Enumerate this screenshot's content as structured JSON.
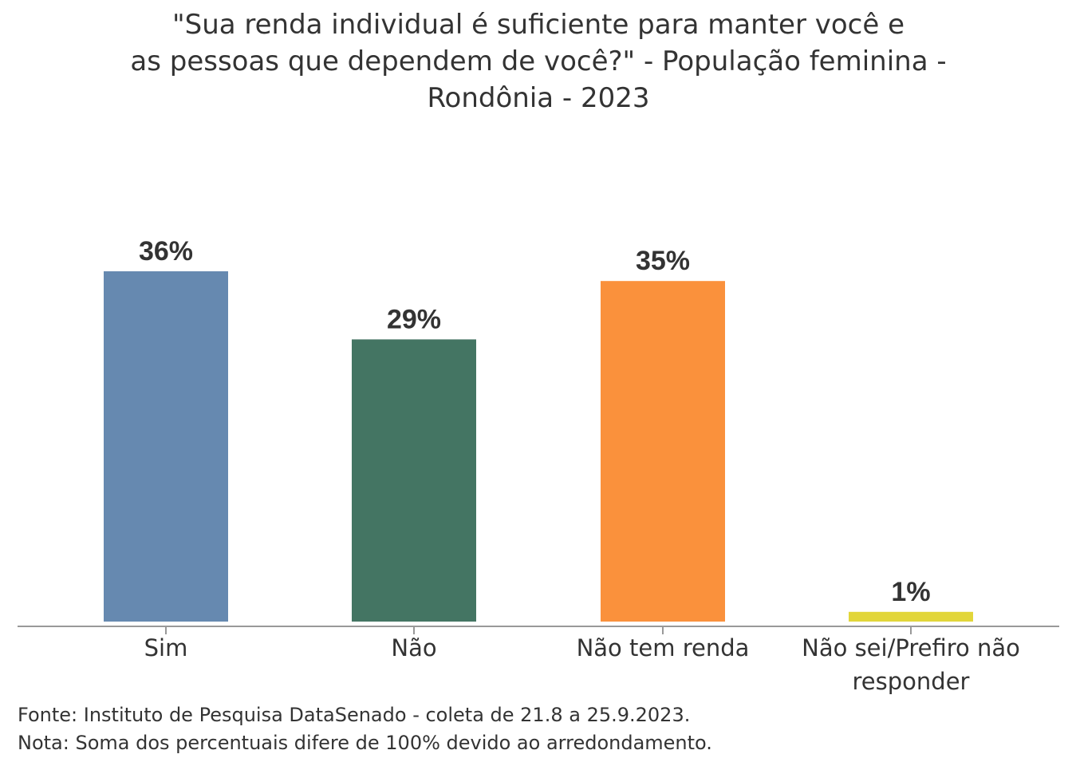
{
  "chart_data": {
    "type": "bar",
    "title_lines": [
      "\"Sua renda individual é suficiente para manter você e",
      "as pessoas que dependem de você?\" - População feminina -",
      "Rondônia - 2023"
    ],
    "categories": [
      [
        "Sim"
      ],
      [
        "Não"
      ],
      [
        "Não tem renda"
      ],
      [
        "Não sei/Prefiro não",
        "responder"
      ]
    ],
    "values": [
      36,
      29,
      35,
      1
    ],
    "labels": [
      "36%",
      "29%",
      "35%",
      "1%"
    ],
    "colors": [
      "#6689b0",
      "#447563",
      "#fa913c",
      "#e2d63a"
    ],
    "xlabel": "",
    "ylabel": "",
    "ylim": [
      0,
      36
    ],
    "grid": false,
    "footnotes": [
      "Fonte: Instituto de Pesquisa DataSenado - coleta de 21.8 a 25.9.2023.",
      "Nota: Soma dos percentuais difere de 100% devido ao arredondamento."
    ]
  }
}
